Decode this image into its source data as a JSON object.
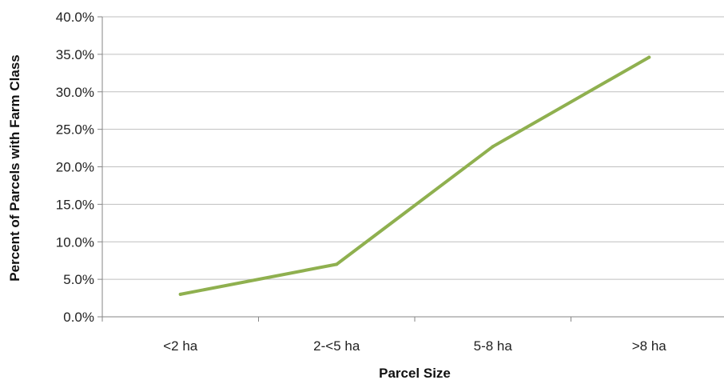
{
  "chart_data": {
    "type": "line",
    "categories": [
      "<2 ha",
      "2-<5 ha",
      "5-8 ha",
      ">8 ha"
    ],
    "series": [
      {
        "values": [
          3.0,
          7.0,
          22.7,
          34.6
        ],
        "color": "#8fb04f"
      }
    ],
    "xlabel": "Parcel Size",
    "ylabel": "Percent of Parcels with Farm Class",
    "ylim": [
      0,
      40
    ],
    "yticks": [
      "0.0%",
      "5.0%",
      "10.0%",
      "15.0%",
      "20.0%",
      "25.0%",
      "30.0%",
      "35.0%",
      "40.0%"
    ],
    "grid": true,
    "legend": "none"
  }
}
